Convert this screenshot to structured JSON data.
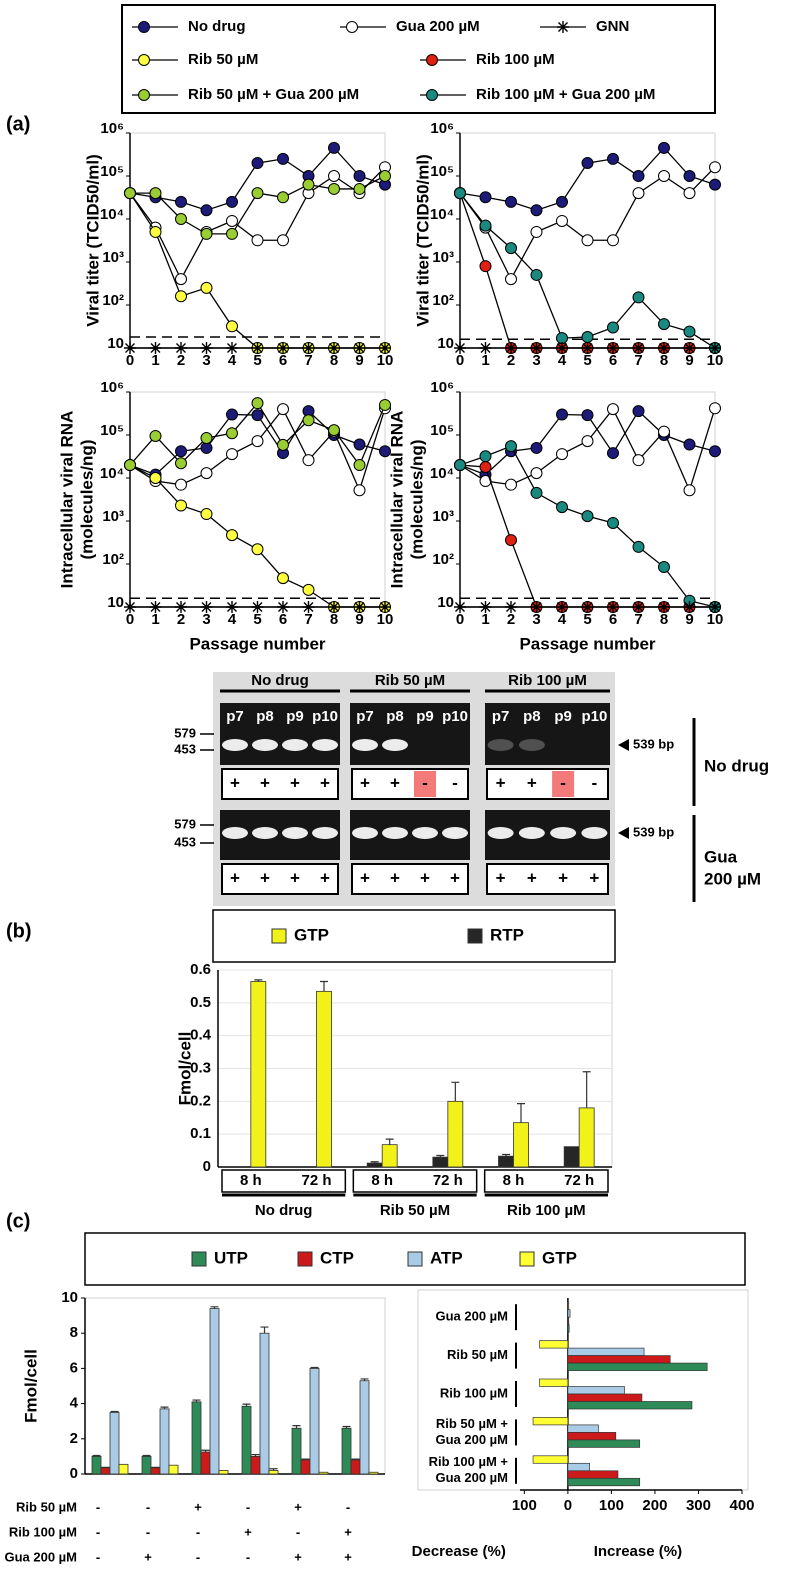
{
  "panel_labels": [
    "(a)",
    "(b)",
    "(c)"
  ],
  "legend": {
    "entries": [
      {
        "name": "No drug",
        "color": "#1c1c78",
        "marker": "circle"
      },
      {
        "name": "Gua 200 µM",
        "color": "#ffffff",
        "marker": "circle"
      },
      {
        "name": "GNN",
        "color": "#000000",
        "marker": "asterisk"
      },
      {
        "name": "Rib 50 µM",
        "color": "#ffff40",
        "marker": "circle"
      },
      {
        "name": "Rib 100 µM",
        "color": "#e02010",
        "marker": "circle"
      },
      {
        "name": "Rib 50 µM + Gua 200 µM",
        "color": "#9acd32",
        "marker": "circle"
      },
      {
        "name": "Rib 100 µM + Gua 200 µM",
        "color": "#1a8a80",
        "marker": "circle"
      }
    ]
  },
  "chart_data": [
    {
      "type": "line",
      "log_y": true,
      "ylabel": [
        "Viral titer (TCID50/ml)"
      ],
      "x": [
        0,
        1,
        2,
        3,
        4,
        5,
        6,
        7,
        8,
        9,
        10
      ],
      "xlim": [
        0,
        10
      ],
      "xticks": [
        0,
        1,
        2,
        3,
        4,
        5,
        6,
        7,
        8,
        9,
        10
      ],
      "ylim": [
        10,
        1000000
      ],
      "yticks": [
        10,
        {
          "value": 100,
          "label": "10²"
        },
        {
          "value": 1000,
          "label": "10³"
        },
        {
          "value": 10000,
          "label": "10⁴"
        },
        {
          "value": 100000,
          "label": "10⁵"
        },
        {
          "value": 1000000,
          "label": "10⁶"
        }
      ],
      "detection_limit": 18,
      "series": [
        {
          "name": "No drug",
          "values": [
            40000,
            32000,
            25000,
            16000,
            25000,
            200000,
            250000,
            100000,
            450000,
            100000,
            63000
          ]
        },
        {
          "name": "Gua 200 µM",
          "values": [
            40000,
            6300,
            400,
            5000,
            9000,
            3200,
            3200,
            40000,
            100000,
            40000,
            160000
          ]
        },
        {
          "name": "Rib 50 µM",
          "values": [
            40000,
            5000,
            160,
            250,
            32,
            10,
            10,
            10,
            10,
            10,
            10
          ]
        },
        {
          "name": "Rib 50 µM + Gua 200 µM",
          "values": [
            40000,
            40000,
            10000,
            4500,
            4500,
            40000,
            32000,
            63000,
            50000,
            50000,
            100000
          ]
        },
        {
          "name": "GNN",
          "values": [
            10,
            10,
            10,
            10,
            10,
            10,
            10,
            10,
            10,
            10,
            10
          ]
        }
      ]
    },
    {
      "type": "line",
      "log_y": true,
      "ylabel": [
        "Viral titer (TCID50/ml)"
      ],
      "x": [
        0,
        1,
        2,
        3,
        4,
        5,
        6,
        7,
        8,
        9,
        10
      ],
      "xlim": [
        0,
        10
      ],
      "xticks": [
        0,
        1,
        2,
        3,
        4,
        5,
        6,
        7,
        8,
        9,
        10
      ],
      "ylim": [
        10,
        1000000
      ],
      "yticks": [
        10,
        {
          "value": 100,
          "label": "10²"
        },
        {
          "value": 1000,
          "label": "10³"
        },
        {
          "value": 10000,
          "label": "10⁴"
        },
        {
          "value": 100000,
          "label": "10⁵"
        },
        {
          "value": 1000000,
          "label": "10⁶"
        }
      ],
      "detection_limit": 16,
      "series": [
        {
          "name": "No drug",
          "values": [
            40000,
            32000,
            25000,
            16000,
            25000,
            200000,
            250000,
            100000,
            450000,
            100000,
            63000
          ]
        },
        {
          "name": "Gua 200 µM",
          "values": [
            40000,
            6300,
            400,
            5000,
            9000,
            3200,
            3200,
            40000,
            100000,
            40000,
            160000
          ]
        },
        {
          "name": "Rib 100 µM",
          "values": [
            40000,
            800,
            10,
            10,
            10,
            10,
            10,
            10,
            10,
            10,
            10
          ]
        },
        {
          "name": "Rib 100 µM + Gua 200 µM",
          "values": [
            40000,
            7000,
            2100,
            500,
            17,
            18,
            30,
            150,
            36,
            24,
            10
          ]
        },
        {
          "name": "GNN",
          "values": [
            10,
            10,
            10,
            10,
            10,
            10,
            10,
            10,
            10,
            10,
            10
          ]
        }
      ]
    },
    {
      "type": "line",
      "log_y": true,
      "ylabel": [
        "Intracellular viral RNA",
        "(molecules/ng)"
      ],
      "xlabel": "Passage number",
      "x": [
        0,
        1,
        2,
        3,
        4,
        5,
        6,
        7,
        8,
        9,
        10
      ],
      "xlim": [
        0,
        10
      ],
      "xticks": [
        0,
        1,
        2,
        3,
        4,
        5,
        6,
        7,
        8,
        9,
        10
      ],
      "ylim": [
        10,
        1000000
      ],
      "yticks": [
        10,
        {
          "value": 100,
          "label": "10²"
        },
        {
          "value": 1000,
          "label": "10³"
        },
        {
          "value": 10000,
          "label": "10⁴"
        },
        {
          "value": 100000,
          "label": "10⁵"
        },
        {
          "value": 1000000,
          "label": "10⁶"
        }
      ],
      "detection_limit": 16,
      "series": [
        {
          "name": "No drug",
          "values": [
            20000,
            12000,
            42000,
            50000,
            300000,
            290000,
            38000,
            360000,
            100000,
            60000,
            42000
          ]
        },
        {
          "name": "Gua 200 µM",
          "values": [
            20000,
            8500,
            7000,
            13000,
            36000,
            72000,
            400000,
            26000,
            120000,
            5200,
            420000
          ]
        },
        {
          "name": "Rib 50 µM",
          "values": [
            20000,
            10000,
            2300,
            1450,
            470,
            220,
            47,
            25,
            10,
            10,
            10
          ]
        },
        {
          "name": "Rib 50 µM + Gua 200 µM",
          "values": [
            20000,
            95000,
            22000,
            85000,
            110000,
            550000,
            59000,
            220000,
            130000,
            20000,
            500000
          ]
        },
        {
          "name": "GNN",
          "values": [
            10,
            10,
            10,
            10,
            10,
            10,
            10,
            10,
            10,
            10,
            10
          ]
        }
      ]
    },
    {
      "type": "line",
      "log_y": true,
      "ylabel": [
        "Intracellular viral RNA",
        "(molecules/ng)"
      ],
      "xlabel": "Passage number",
      "x": [
        0,
        1,
        2,
        3,
        4,
        5,
        6,
        7,
        8,
        9,
        10
      ],
      "xlim": [
        0,
        10
      ],
      "xticks": [
        0,
        1,
        2,
        3,
        4,
        5,
        6,
        7,
        8,
        9,
        10
      ],
      "ylim": [
        10,
        1000000
      ],
      "yticks": [
        10,
        {
          "value": 100,
          "label": "10²"
        },
        {
          "value": 1000,
          "label": "10³"
        },
        {
          "value": 10000,
          "label": "10⁴"
        },
        {
          "value": 100000,
          "label": "10⁵"
        },
        {
          "value": 1000000,
          "label": "10⁶"
        }
      ],
      "detection_limit": 16,
      "series": [
        {
          "name": "No drug",
          "values": [
            20000,
            12000,
            42000,
            50000,
            300000,
            290000,
            38000,
            360000,
            100000,
            60000,
            42000
          ]
        },
        {
          "name": "Gua 200 µM",
          "values": [
            20000,
            8500,
            7000,
            13000,
            36000,
            72000,
            400000,
            26000,
            120000,
            5200,
            420000
          ]
        },
        {
          "name": "Rib 100 µM",
          "values": [
            20000,
            18000,
            360,
            10,
            10,
            10,
            10,
            10,
            10,
            10,
            10
          ]
        },
        {
          "name": "Rib 100 µM + Gua 200 µM",
          "values": [
            20000,
            32000,
            55000,
            4500,
            2100,
            1300,
            900,
            250,
            85,
            14,
            10
          ]
        },
        {
          "name": "GNN",
          "values": [
            10,
            10,
            10,
            10,
            10,
            10,
            10,
            10,
            10,
            10,
            10
          ]
        }
      ]
    },
    {
      "type": "bar",
      "ylabel": "Fmol/cell",
      "ylim": [
        0,
        0.6
      ],
      "yticks": [
        0,
        0.1,
        0.2,
        0.3,
        0.4,
        0.5,
        0.6
      ],
      "grid": true,
      "categories": [
        "8 h",
        "72 h",
        "8 h",
        "72 h",
        "8 h",
        "72 h"
      ],
      "groups": [
        "No drug",
        "Rib 50 µM",
        "Rib 100 µM"
      ],
      "series": [
        {
          "name": "GTP",
          "color": "#f2f21a",
          "values": [
            0.565,
            0.535,
            0.068,
            0.2,
            0.135,
            0.18
          ],
          "errors": [
            0.005,
            0.03,
            0.017,
            0.058,
            0.058,
            0.11
          ]
        },
        {
          "name": "RTP",
          "color": "#262626",
          "values": [
            null,
            null,
            0.012,
            0.03,
            0.033,
            0.062
          ],
          "errors": [
            null,
            null,
            0.004,
            0.005,
            0.005,
            null
          ]
        }
      ]
    },
    {
      "type": "bar",
      "ylabel": "Fmol/cell",
      "ylim": [
        0,
        10
      ],
      "yticks": [
        0,
        2,
        4,
        6,
        8,
        10
      ],
      "grid": false,
      "series": [
        {
          "name": "UTP",
          "color": "#2e8b57",
          "values": [
            1.0,
            1.0,
            4.1,
            3.85,
            2.6,
            2.6
          ],
          "errors": [
            0.05,
            0.05,
            0.1,
            0.12,
            0.15,
            0.1
          ]
        },
        {
          "name": "CTP",
          "color": "#cc1a1a",
          "values": [
            0.35,
            0.35,
            1.25,
            1.0,
            0.8,
            0.8
          ],
          "errors": [
            0.03,
            0.03,
            0.1,
            0.1,
            0.05,
            0.05
          ]
        },
        {
          "name": "ATP",
          "color": "#a9cbe6",
          "values": [
            3.5,
            3.7,
            9.4,
            8.0,
            6.0,
            5.3
          ],
          "errors": [
            0.05,
            0.1,
            0.1,
            0.35,
            0.05,
            0.1
          ]
        },
        {
          "name": "GTP",
          "color": "#ffff33",
          "values": [
            0.55,
            0.5,
            0.2,
            0.2,
            0.1,
            0.1
          ],
          "errors": [
            null,
            null,
            null,
            0.1,
            null,
            null
          ]
        }
      ],
      "conditions": [
        {
          "label": "Rib 50 µM",
          "values": [
            "-",
            "-",
            "+",
            "-",
            "+",
            "-"
          ]
        },
        {
          "label": "Rib 100 µM",
          "values": [
            "-",
            "-",
            "-",
            "+",
            "-",
            "+"
          ]
        },
        {
          "label": "Gua 200 µM",
          "values": [
            "-",
            "+",
            "-",
            "-",
            "+",
            "+"
          ]
        }
      ]
    },
    {
      "type": "hbar",
      "categories": [
        [
          "Gua 200 µM"
        ],
        [
          "Rib 50 µM"
        ],
        [
          "Rib 100 µM"
        ],
        [
          "Rib 50 µM +",
          "Gua 200 µM"
        ],
        [
          "Rib 100 µM +",
          "Gua 200 µM"
        ]
      ],
      "xlim": [
        -110,
        400
      ],
      "xticks": [
        {
          "value": -100,
          "label": "100"
        },
        0,
        100,
        200,
        300,
        400
      ],
      "xlabel_decrease": "Decrease (%)",
      "xlabel_increase": "Increase (%)",
      "series": [
        {
          "name": "GTP",
          "values": [
            2,
            -65,
            -65,
            -80,
            -80
          ]
        },
        {
          "name": "ATP",
          "values": [
            5,
            175,
            130,
            70,
            50
          ]
        },
        {
          "name": "CTP",
          "values": [
            2,
            235,
            170,
            110,
            115
          ]
        },
        {
          "name": "UTP",
          "values": [
            3,
            320,
            285,
            165,
            165
          ]
        }
      ]
    }
  ],
  "gel": {
    "groups": [
      "No drug",
      "Rib 50 µM",
      "Rib 100 µM"
    ],
    "lanes": [
      "p7",
      "p8",
      "p9",
      "p10"
    ],
    "markers": [
      "579",
      "453"
    ],
    "band_label": "539 bp",
    "rows": [
      {
        "label": [
          "No drug"
        ],
        "results": [
          [
            "+",
            "+",
            "+",
            "+"
          ],
          [
            "+",
            "+",
            "-",
            "-"
          ],
          [
            "+",
            "+",
            "-",
            "-"
          ]
        ],
        "highlight": {
          "color": "#f47a7a",
          "cells": [
            [
              1,
              2
            ],
            [
              2,
              2
            ]
          ]
        }
      },
      {
        "label": [
          "Gua",
          "200 µM"
        ],
        "results": [
          [
            "+",
            "+",
            "+",
            "+"
          ],
          [
            "+",
            "+",
            "+",
            "+"
          ],
          [
            "+",
            "+",
            "+",
            "+"
          ]
        ]
      }
    ]
  }
}
